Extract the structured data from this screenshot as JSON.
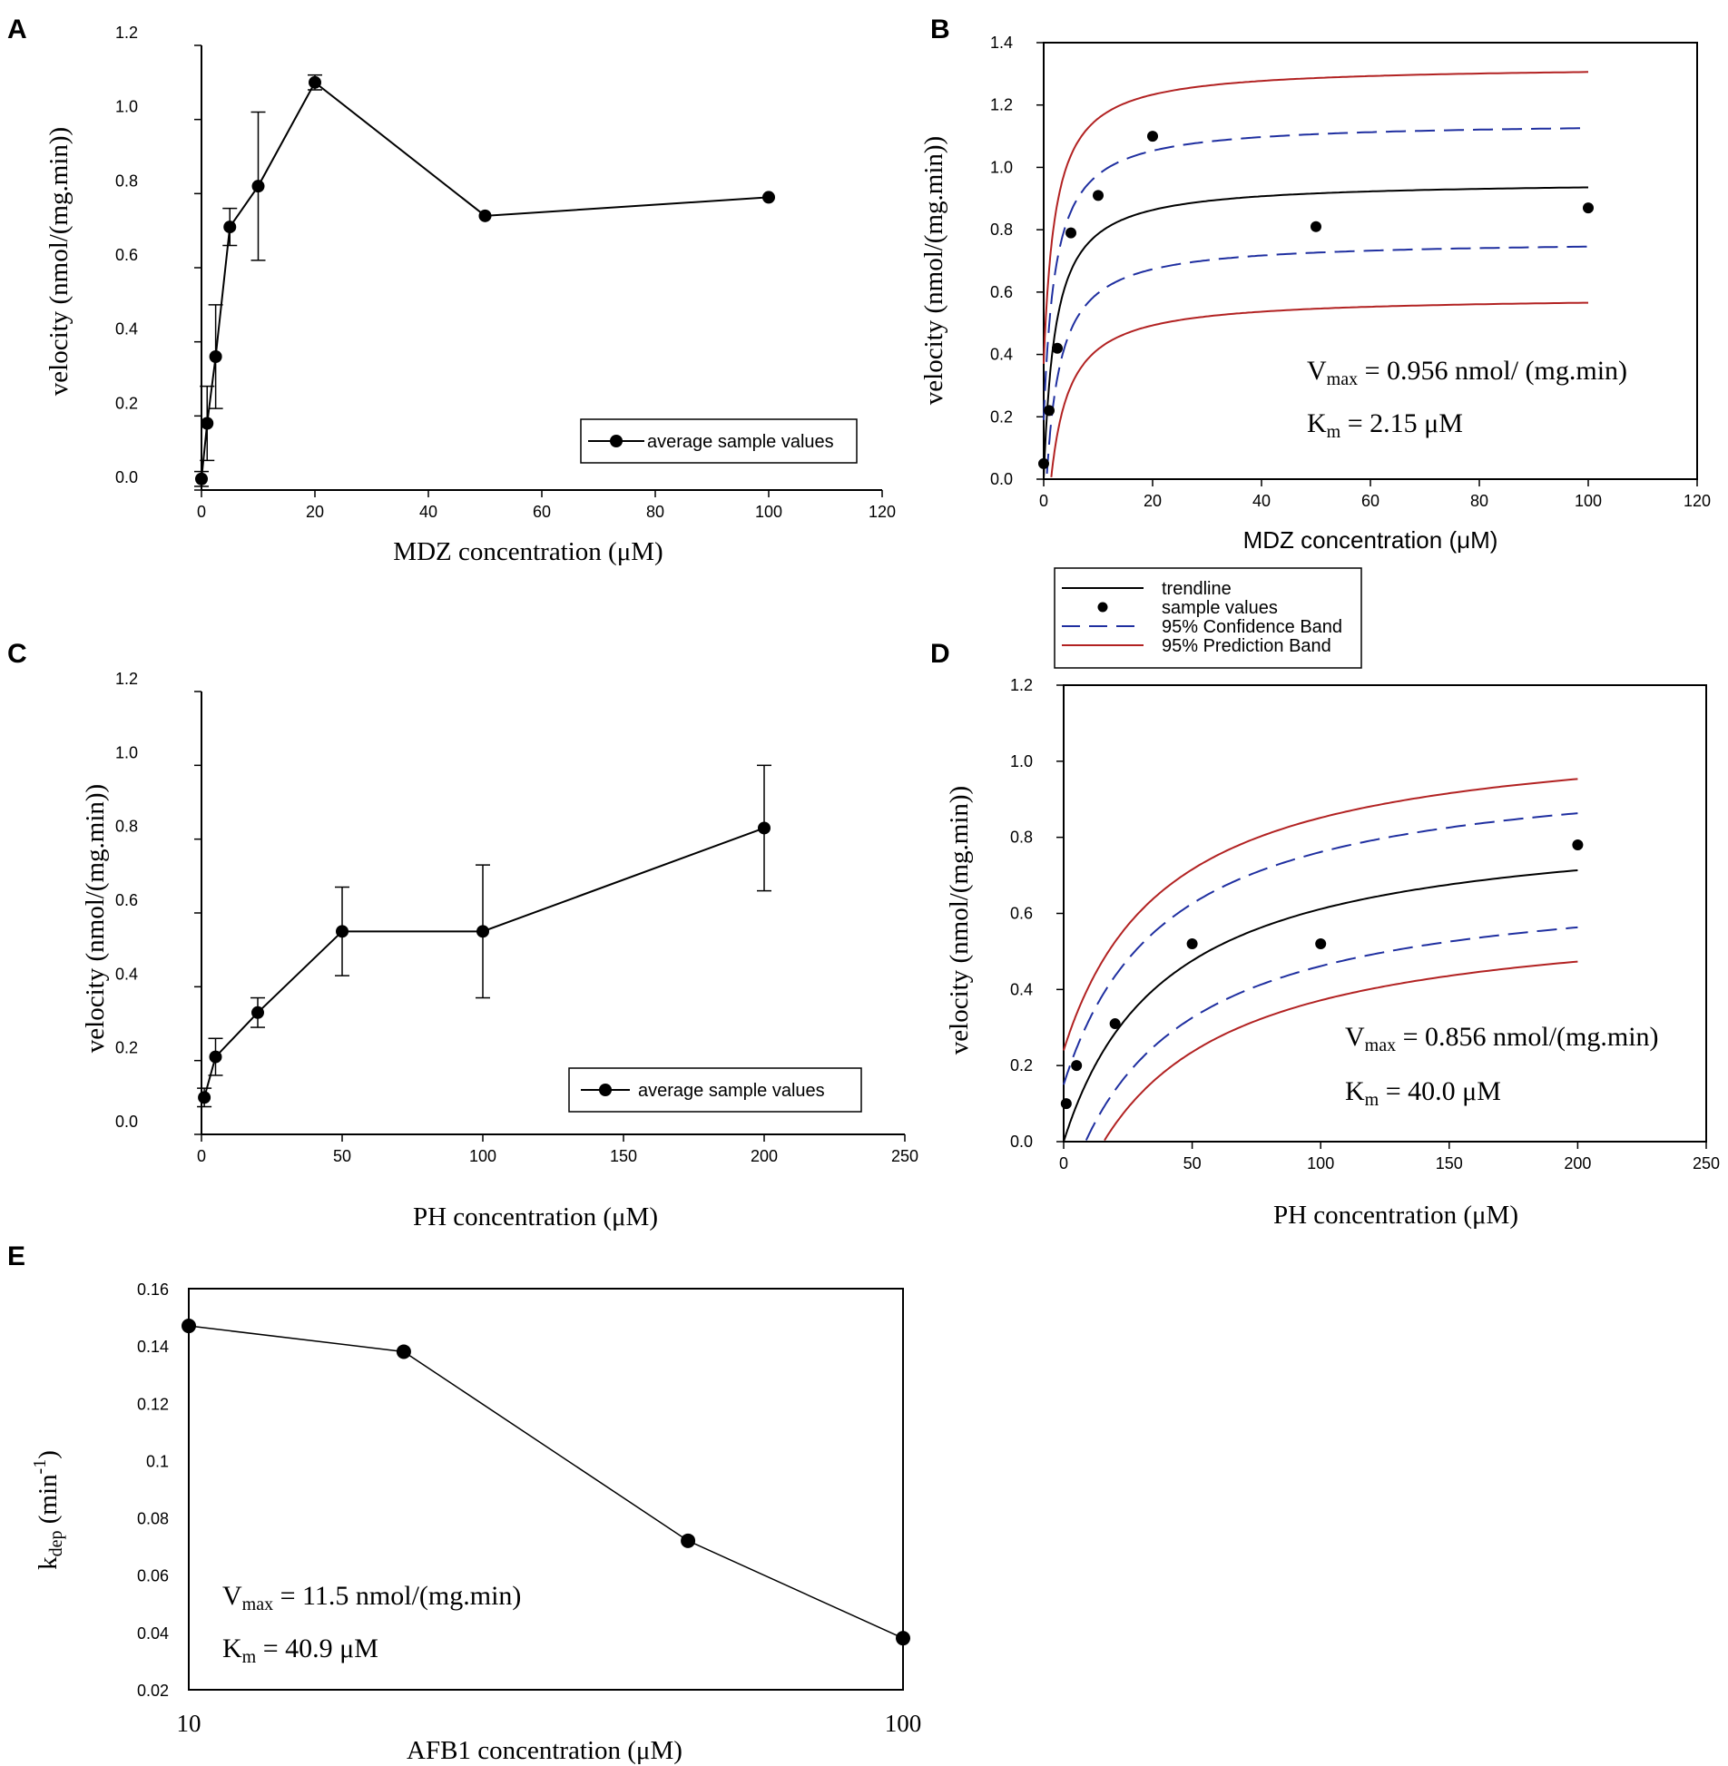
{
  "chart_data": [
    {
      "panel": "A",
      "type": "line",
      "xlabel": "MDZ concentration (μM)",
      "ylabel": "velocity (nmol/(mg.min))",
      "xlim": [
        0,
        120
      ],
      "ylim": [
        0,
        1.2
      ],
      "x_ticks": [
        "0",
        "20",
        "40",
        "60",
        "80",
        "100",
        "120"
      ],
      "y_ticks": [
        "0.0",
        "0.2",
        "0.4",
        "0.6",
        "0.8",
        "1.0",
        "1.2"
      ],
      "series": [
        {
          "name": "average sample values",
          "x": [
            0,
            1,
            2.5,
            5,
            10,
            20,
            50,
            100
          ],
          "y": [
            0.03,
            0.18,
            0.36,
            0.71,
            0.82,
            1.1,
            0.74,
            0.79
          ],
          "err": [
            0.02,
            0.1,
            0.14,
            0.05,
            0.2,
            0.02,
            0,
            0
          ]
        }
      ],
      "legend": [
        "average sample values"
      ]
    },
    {
      "panel": "B",
      "type": "line",
      "xlabel": "MDZ concentration (μM)",
      "ylabel": "velocity (nmol/(mg.min))",
      "xlim": [
        0,
        120
      ],
      "ylim": [
        0,
        1.4
      ],
      "x_ticks": [
        "0",
        "20",
        "40",
        "60",
        "80",
        "100",
        "120"
      ],
      "y_ticks": [
        "0.0",
        "0.2",
        "0.4",
        "0.6",
        "0.8",
        "1.0",
        "1.2",
        "1.4"
      ],
      "fit": {
        "vmax": 0.956,
        "km": 2.15,
        "ci_offset": 0.19,
        "pi_offset": 0.37
      },
      "samples": {
        "x": [
          0,
          1,
          2.5,
          5,
          10,
          20,
          50,
          100
        ],
        "y": [
          0.05,
          0.22,
          0.42,
          0.79,
          0.91,
          1.1,
          0.81,
          0.87
        ]
      },
      "annotations": [
        {
          "main": "V",
          "sub": "max",
          "rest": " = 0.956 nmol/ (mg.min)"
        },
        {
          "main": "K",
          "sub": "m",
          "rest": " = 2.15 μM"
        }
      ],
      "legend": [
        "trendline",
        "sample values",
        "95% Confidence Band",
        "95% Prediction Band"
      ]
    },
    {
      "panel": "C",
      "type": "line",
      "xlabel": "PH concentration (μM)",
      "ylabel": "velocity (nmol/(mg.min))",
      "xlim": [
        0,
        250
      ],
      "ylim": [
        0,
        1.2
      ],
      "x_ticks": [
        "0",
        "50",
        "100",
        "150",
        "200",
        "250"
      ],
      "y_ticks": [
        "0.0",
        "0.2",
        "0.4",
        "0.6",
        "0.8",
        "1.0",
        "1.2"
      ],
      "series": [
        {
          "name": "average sample values",
          "x": [
            1,
            5,
            20,
            50,
            100,
            200
          ],
          "y": [
            0.1,
            0.21,
            0.33,
            0.55,
            0.55,
            0.83
          ],
          "err": [
            0.025,
            0.05,
            0.04,
            0.12,
            0.18,
            0.17
          ]
        }
      ],
      "legend": [
        "average sample values"
      ]
    },
    {
      "panel": "D",
      "type": "line",
      "xlabel": "PH concentration (μM)",
      "ylabel": "velocity (nmol/(mg.min))",
      "xlim": [
        0,
        250
      ],
      "ylim": [
        0,
        1.2
      ],
      "x_ticks": [
        "0",
        "50",
        "100",
        "150",
        "200",
        "250"
      ],
      "y_ticks": [
        "0.0",
        "0.2",
        "0.4",
        "0.6",
        "0.8",
        "1.0",
        "1.2"
      ],
      "fit": {
        "vmax": 0.856,
        "km": 40.0,
        "ci_offset": 0.15,
        "pi_offset": 0.24
      },
      "samples": {
        "x": [
          1,
          5,
          20,
          50,
          100,
          200
        ],
        "y": [
          0.1,
          0.2,
          0.31,
          0.52,
          0.52,
          0.78
        ]
      },
      "annotations": [
        {
          "main": "V",
          "sub": "max",
          "rest": " = 0.856 nmol/(mg.min)"
        },
        {
          "main": "K",
          "sub": "m",
          "rest": " = 40.0 μM"
        }
      ],
      "legend": []
    },
    {
      "panel": "E",
      "type": "line",
      "xscale": "log",
      "xlabel": "AFB1 concentration (μM)",
      "ylabel": {
        "main": "k",
        "sub": "dep",
        "rest": " (min",
        "sup": "-1",
        "end": ")"
      },
      "xlim": [
        10,
        100
      ],
      "ylim": [
        0.02,
        0.16
      ],
      "x_ticks": [
        "10",
        "100"
      ],
      "y_ticks": [
        "0.02",
        "0.04",
        "0.06",
        "0.08",
        "0.1",
        "0.12",
        "0.14",
        "0.16"
      ],
      "series": [
        {
          "name": "kdep",
          "x": [
            10,
            20,
            50,
            100
          ],
          "y": [
            0.147,
            0.138,
            0.072,
            0.038
          ]
        }
      ],
      "annotations": [
        {
          "main": "V",
          "sub": "max",
          "rest": " = 11.5 nmol/(mg.min)"
        },
        {
          "main": "K",
          "sub": "m",
          "rest": " = 40.9 μM"
        }
      ]
    }
  ]
}
